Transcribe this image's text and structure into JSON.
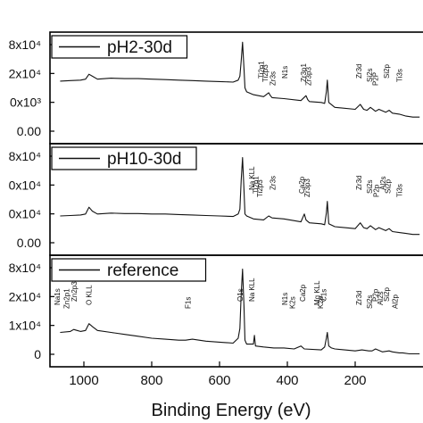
{
  "chart_data": {
    "type": "line",
    "xlabel": "Binding Energy (eV)",
    "xlim": [
      1100,
      0
    ],
    "x_ticks": [
      "1000",
      "800",
      "600",
      "400",
      "200"
    ],
    "x_tick_values": [
      1000,
      800,
      600,
      400,
      200
    ],
    "panels": [
      {
        "legend": "pH2-30d",
        "y_tick_labels": [
          "8x10⁴",
          "2x10⁴",
          "0x10³",
          "0.00"
        ],
        "ylim": [
          0,
          100
        ],
        "series": [
          {
            "x": [
              1070,
              1040,
              1010,
              995,
              985,
              975,
              960,
              920,
              880,
              840,
              800,
              760,
              720,
              680,
              640,
              600,
              560,
              545,
              540,
              536,
              532,
              528,
              525,
              520,
              500,
              470,
              455,
              450,
              445,
              410,
              360,
              345,
              340,
              335,
              300,
              290,
              285,
              282,
              278,
              260,
              200,
              185,
              175,
              165,
              155,
              140,
              130,
              110,
              100,
              90,
              70,
              60,
              50,
              30,
              10
            ],
            "y": [
              57,
              57.5,
              58,
              59,
              64,
              62,
              59,
              60,
              59.5,
              59.5,
              59,
              58.5,
              58,
              57.5,
              57,
              56.5,
              56,
              58,
              62,
              78,
              97,
              70,
              50,
              46,
              43,
              41,
              45,
              42,
              40,
              39,
              37,
              42,
              38,
              36,
              35,
              34,
              46,
              58,
              35,
              30,
              28,
              33,
              28,
              27,
              30,
              26,
              28,
              25,
              27,
              24,
              23,
              22,
              21,
              20,
              20
            ]
          }
        ],
        "peak_labels": [
          {
            "text": "Ti2p1",
            "x": 470
          },
          {
            "text": "Ti2p3",
            "x": 458
          },
          {
            "text": "Zr3s",
            "x": 436
          },
          {
            "text": "N1s",
            "x": 400
          },
          {
            "text": "Zr3p1",
            "x": 345
          },
          {
            "text": "Zr3p3",
            "x": 330
          },
          {
            "text": "Zr3d",
            "x": 182
          },
          {
            "text": "Si2s",
            "x": 150
          },
          {
            "text": "P2P",
            "x": 133
          },
          {
            "text": "Si2p",
            "x": 100
          },
          {
            "text": "Ti3s",
            "x": 62
          }
        ]
      },
      {
        "legend": "pH10-30d",
        "y_tick_labels": [
          "8x10⁴",
          "0x10⁴",
          "0x10⁴",
          "0.00"
        ],
        "ylim": [
          0,
          100
        ],
        "series": [
          {
            "x": [
              1070,
              1040,
              1010,
              995,
              985,
              975,
              960,
              920,
              880,
              840,
              800,
              760,
              720,
              680,
              640,
              600,
              560,
              545,
              540,
              536,
              532,
              528,
              525,
              520,
              500,
              470,
              455,
              445,
              410,
              360,
              350,
              345,
              335,
              300,
              290,
              285,
              282,
              278,
              260,
              200,
              185,
              175,
              165,
              155,
              140,
              130,
              110,
              100,
              90,
              70,
              50,
              30,
              10
            ],
            "y": [
              33,
              33.5,
              34,
              35,
              42,
              38,
              35,
              36,
              35.5,
              35.5,
              35,
              35,
              34.5,
              34,
              33.5,
              33,
              32.5,
              35,
              40,
              70,
              93,
              60,
              35,
              33,
              30,
              29,
              33,
              31,
              30,
              27,
              35,
              29,
              26,
              25,
              24,
              36,
              48,
              25,
              22,
              20,
              26,
              21,
              20,
              23,
              19,
              21,
              18,
              20,
              17,
              16,
              15,
              14,
              14
            ]
          }
        ],
        "peak_labels": [
          {
            "text": "Na KLL",
            "x": 498
          },
          {
            "text": "Ti2p1",
            "x": 486
          },
          {
            "text": "Ti2p3",
            "x": 474
          },
          {
            "text": "Zr3s",
            "x": 436
          },
          {
            "text": "Ca2p",
            "x": 350
          },
          {
            "text": "Zr3p3",
            "x": 334
          },
          {
            "text": "Zr3d",
            "x": 182
          },
          {
            "text": "Si2s",
            "x": 150
          },
          {
            "text": "P2p",
            "x": 130
          },
          {
            "text": "Al2s",
            "x": 110
          },
          {
            "text": "Si2p",
            "x": 96
          },
          {
            "text": "Ti3s",
            "x": 62
          }
        ]
      },
      {
        "legend": "reference",
        "y_tick_labels": [
          "8x10⁴",
          "2x10⁴",
          "1x10⁴",
          "0"
        ],
        "ylim": [
          0,
          100
        ],
        "series": [
          {
            "x": [
              1070,
              1040,
              1030,
              1020,
              1010,
              995,
              985,
              975,
              960,
              920,
              880,
              840,
              800,
              760,
              720,
              700,
              680,
              660,
              640,
              600,
              560,
              545,
              540,
              536,
              532,
              528,
              525,
              520,
              500,
              497,
              494,
              470,
              440,
              410,
              380,
              360,
              350,
              300,
              290,
              285,
              282,
              278,
              270,
              260,
              200,
              180,
              160,
              150,
              140,
              120,
              100,
              90,
              70,
              60,
              40,
              20,
              10
            ],
            "y": [
              28,
              29,
              31,
              30,
              29,
              30,
              37,
              34,
              30,
              28,
              26,
              24,
              22,
              21,
              20,
              20,
              21,
              20,
              19,
              18,
              17,
              22,
              32,
              68,
              93,
              55,
              20,
              16,
              16,
              25,
              14,
              13,
              12,
              12,
              11,
              14,
              11,
              10,
              13,
              22,
              28,
              14,
              12,
              11,
              9,
              10,
              9,
              9,
              11,
              8,
              9,
              8,
              7,
              7,
              6,
              6,
              6
            ]
          }
        ],
        "peak_labels": [
          {
            "text": "O1s",
            "x": 532
          },
          {
            "text": "Na1s",
            "x": 1071
          },
          {
            "text": "Zn2p1",
            "x": 1044
          },
          {
            "text": "Zn2p3",
            "x": 1021
          },
          {
            "text": "O KLL",
            "x": 978
          },
          {
            "text": "F1s",
            "x": 686
          },
          {
            "text": "Na KLL",
            "x": 498
          },
          {
            "text": "N1s",
            "x": 400
          },
          {
            "text": "K2s",
            "x": 378
          },
          {
            "text": "Ca2p",
            "x": 348
          },
          {
            "text": "Mg KLL",
            "x": 305
          },
          {
            "text": "K2p",
            "x": 295
          },
          {
            "text": "C1s",
            "x": 285
          },
          {
            "text": "Zr3d",
            "x": 182
          },
          {
            "text": "Si2s",
            "x": 150
          },
          {
            "text": "P2p",
            "x": 133
          },
          {
            "text": "Al2s",
            "x": 118
          },
          {
            "text": "Al2p",
            "x": 75
          },
          {
            "text": "Si2p",
            "x": 100
          }
        ]
      }
    ]
  }
}
